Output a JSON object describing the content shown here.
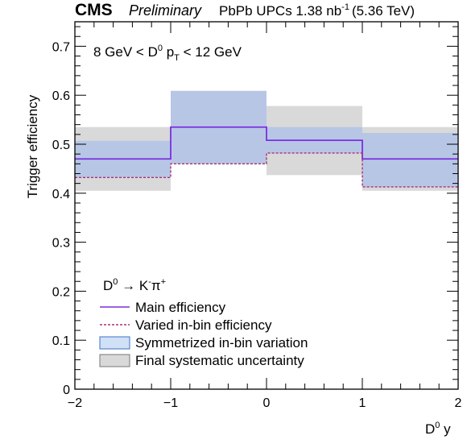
{
  "header": {
    "experiment": "CMS",
    "status": "Preliminary",
    "lumi_prefix": "PbPb UPCs 1.38 nb",
    "lumi_exp": "-1",
    "energy": "(5.36 TeV)"
  },
  "annotation": {
    "pre": "8 GeV < D",
    "sup": "0",
    "mid": " p",
    "sub": "T",
    "post": " < 12 GeV"
  },
  "decay": {
    "parent": "D",
    "parent_sup": "0",
    "arrow": " → K",
    "k_sup": "-",
    "pion": "π",
    "pi_sup": "+"
  },
  "legend": {
    "main": "Main efficiency",
    "varied": "Varied in-bin efficiency",
    "symm": "Symmetrized in-bin variation",
    "final": "Final systematic uncertainty"
  },
  "axes": {
    "xlabel": "D",
    "xlabel_sup": "0",
    "xlabel_post": " y",
    "ylabel": "Trigger efficiency",
    "xticks": [
      "−2",
      "−1",
      "0",
      "1",
      "2"
    ],
    "yticks": [
      "0",
      "0.1",
      "0.2",
      "0.3",
      "0.4",
      "0.5",
      "0.6",
      "0.7"
    ]
  },
  "chart_data": {
    "type": "step",
    "xlabel": "D0 y",
    "ylabel": "Trigger efficiency",
    "xlim": [
      -2,
      2
    ],
    "ylim": [
      0,
      0.75
    ],
    "bins": [
      [
        -2,
        -1
      ],
      [
        -1,
        0
      ],
      [
        0,
        1
      ],
      [
        1,
        2
      ]
    ],
    "series": [
      {
        "name": "Main efficiency",
        "values": [
          0.47,
          0.535,
          0.508,
          0.47
        ]
      },
      {
        "name": "Varied in-bin efficiency",
        "values": [
          0.432,
          0.46,
          0.482,
          0.413
        ]
      }
    ],
    "bands": [
      {
        "name": "Final systematic uncertainty",
        "low": [
          0.405,
          0.46,
          0.437,
          0.405
        ],
        "high": [
          0.535,
          0.535,
          0.578,
          0.535
        ]
      },
      {
        "name": "Symmetrized in-bin variation",
        "low": [
          0.432,
          0.46,
          0.482,
          0.413
        ],
        "high": [
          0.507,
          0.609,
          0.535,
          0.523
        ]
      }
    ],
    "colors": {
      "main": "#7a2fe0",
      "varied": "#a8327a",
      "symm_fill": "#b8c6e6",
      "symm_stroke": "#3f72c8",
      "final_fill": "#d9d9d9",
      "final_stroke": "#777777"
    }
  }
}
